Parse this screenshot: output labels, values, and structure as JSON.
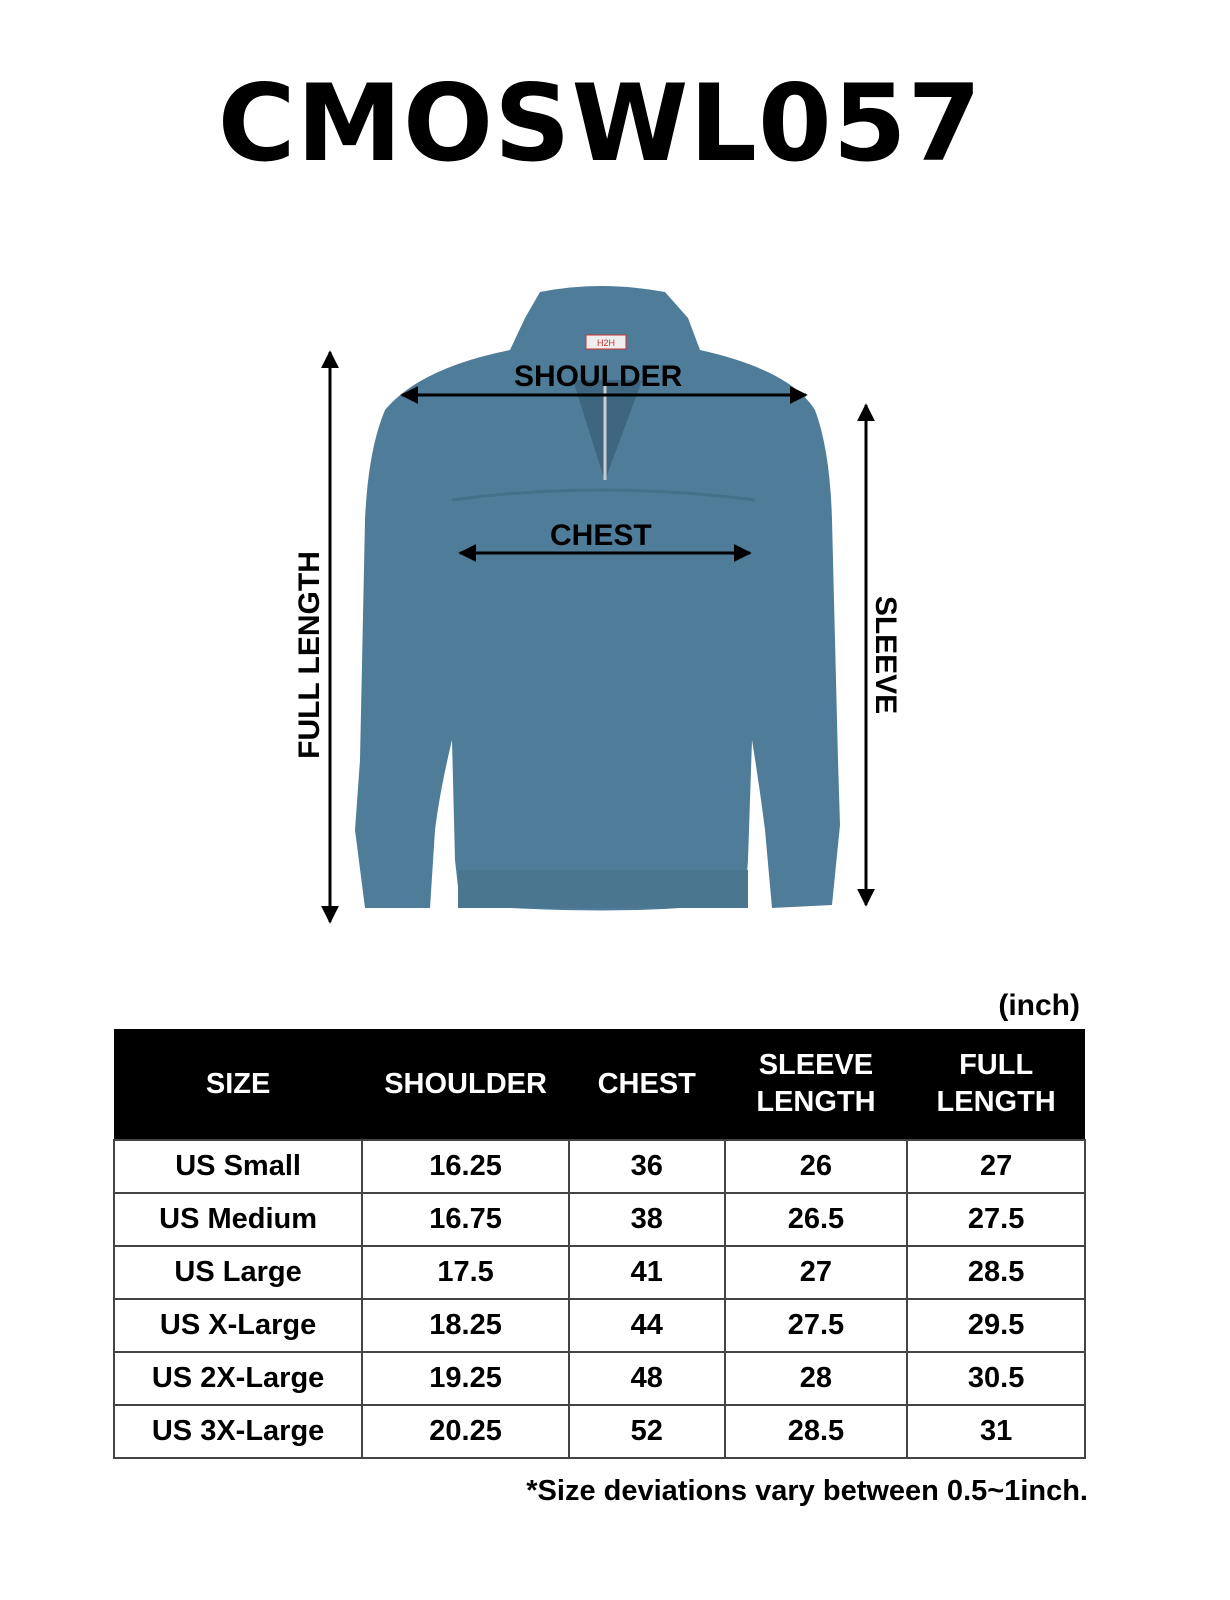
{
  "title": "CMOSWL057",
  "diagram": {
    "shoulder_label": "SHOULDER",
    "chest_label": "CHEST",
    "full_length_label": "FULL LENGTH",
    "sleeve_label": "SLEEVE",
    "garment_color": "#4f7d99",
    "tag_text": "H2H"
  },
  "table": {
    "unit": "(inch)",
    "headers": [
      "SIZE",
      "SHOULDER",
      "CHEST",
      "SLEEVE LENGTH",
      "FULL LENGTH"
    ],
    "rows": [
      [
        "US Small",
        "16.25",
        "36",
        "26",
        "27"
      ],
      [
        "US Medium",
        "16.75",
        "38",
        "26.5",
        "27.5"
      ],
      [
        "US Large",
        "17.5",
        "41",
        "27",
        "28.5"
      ],
      [
        "US X-Large",
        "18.25",
        "44",
        "27.5",
        "29.5"
      ],
      [
        "US 2X-Large",
        "19.25",
        "48",
        "28",
        "30.5"
      ],
      [
        "US 3X-Large",
        "20.25",
        "52",
        "28.5",
        "31"
      ]
    ]
  },
  "footnote": "*Size deviations vary between 0.5~1inch."
}
